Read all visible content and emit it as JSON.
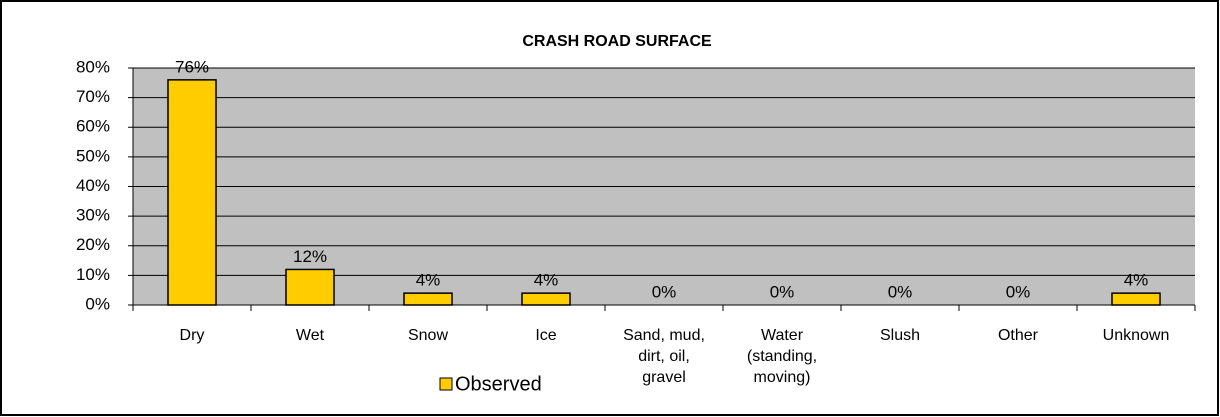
{
  "chart_data": {
    "type": "bar",
    "title": "CRASH ROAD SURFACE",
    "categories": [
      "Dry",
      "Wet",
      "Snow",
      "Ice",
      "Sand, mud, dirt, oil, gravel",
      "Water (standing, moving)",
      "Slush",
      "Other",
      "Unknown"
    ],
    "series": [
      {
        "name": "Observed",
        "color": "#ffcc00",
        "values": [
          76,
          12,
          4,
          4,
          0,
          0,
          0,
          0,
          4
        ],
        "value_labels": [
          "76%",
          "12%",
          "4%",
          "4%",
          "0%",
          "0%",
          "0%",
          "0%",
          "4%"
        ]
      }
    ],
    "ylim": [
      0,
      80
    ],
    "yticks": [
      {
        "value": 0,
        "label": "0%"
      },
      {
        "value": 10,
        "label": "10%"
      },
      {
        "value": 20,
        "label": "20%"
      },
      {
        "value": 30,
        "label": "30%"
      },
      {
        "value": 40,
        "label": "40%"
      },
      {
        "value": 50,
        "label": "50%"
      },
      {
        "value": 60,
        "label": "60%"
      },
      {
        "value": 70,
        "label": "70%"
      },
      {
        "value": 80,
        "label": "80%"
      }
    ],
    "grid": true,
    "legend": "bottom"
  }
}
